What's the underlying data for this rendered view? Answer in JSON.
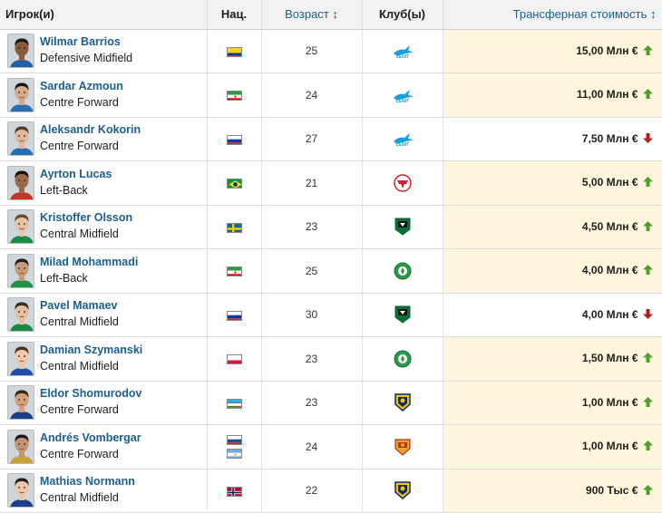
{
  "header": {
    "player": "Игрок(и)",
    "nat": "Нац.",
    "age": "Возраст ↕",
    "club": "Клуб(ы)",
    "value": "Трансферная стоимость ↕"
  },
  "colors": {
    "link": "#1a5f8f",
    "highlight": "#fdf5dc",
    "up": "#4d9e2b",
    "down": "#b32020"
  },
  "rows": [
    {
      "name": "Wilmar Barrios",
      "position": "Defensive Midfield",
      "flags": [
        "colombia-flag"
      ],
      "age": "25",
      "club_icon": "zenit-crest",
      "value": "15,00 Млн €",
      "trend": "up-arrow-icon",
      "highlight": true
    },
    {
      "name": "Sardar Azmoun",
      "position": "Centre Forward",
      "flags": [
        "iran-flag"
      ],
      "age": "24",
      "club_icon": "zenit-crest",
      "value": "11,00 Млн €",
      "trend": "up-arrow-icon",
      "highlight": true
    },
    {
      "name": "Aleksandr Kokorin",
      "position": "Centre Forward",
      "flags": [
        "russia-flag"
      ],
      "age": "27",
      "club_icon": "zenit-crest",
      "value": "7,50 Млн €",
      "trend": "down-arrow-icon",
      "highlight": false
    },
    {
      "name": "Ayrton Lucas",
      "position": "Left-Back",
      "flags": [
        "brazil-flag"
      ],
      "age": "21",
      "club_icon": "spartak-crest",
      "value": "5,00 Млн €",
      "trend": "up-arrow-icon",
      "highlight": true
    },
    {
      "name": "Kristoffer Olsson",
      "position": "Central Midfield",
      "flags": [
        "sweden-flag"
      ],
      "age": "23",
      "club_icon": "krasnodar-crest",
      "value": "4,50 Млн €",
      "trend": "up-arrow-icon",
      "highlight": true
    },
    {
      "name": "Milad Mohammadi",
      "position": "Left-Back",
      "flags": [
        "iran-flag"
      ],
      "age": "25",
      "club_icon": "akhmat-crest",
      "value": "4,00 Млн €",
      "trend": "up-arrow-icon",
      "highlight": true
    },
    {
      "name": "Pavel Mamaev",
      "position": "Central Midfield",
      "flags": [
        "russia-flag"
      ],
      "age": "30",
      "club_icon": "krasnodar-crest",
      "value": "4,00 Млн €",
      "trend": "down-arrow-icon",
      "highlight": false
    },
    {
      "name": "Damian Szymanski",
      "position": "Central Midfield",
      "flags": [
        "poland-flag"
      ],
      "age": "23",
      "club_icon": "akhmat-crest",
      "value": "1,50 Млн €",
      "trend": "up-arrow-icon",
      "highlight": true
    },
    {
      "name": "Eldor Shomurodov",
      "position": "Centre Forward",
      "flags": [
        "uzbekistan-flag"
      ],
      "age": "23",
      "club_icon": "rostov-crest",
      "value": "1,00 Млн €",
      "trend": "up-arrow-icon",
      "highlight": true
    },
    {
      "name": "Andrés Vombergar",
      "position": "Centre Forward",
      "flags": [
        "slovenia-flag",
        "argentina-flag"
      ],
      "age": "24",
      "club_icon": "ufa-crest",
      "value": "1,00 Млн €",
      "trend": "up-arrow-icon",
      "highlight": true
    },
    {
      "name": "Mathias Normann",
      "position": "Central Midfield",
      "flags": [
        "norway-flag"
      ],
      "age": "22",
      "club_icon": "rostov-crest",
      "value": "900 Тыс €",
      "trend": "up-arrow-icon",
      "highlight": true
    }
  ]
}
